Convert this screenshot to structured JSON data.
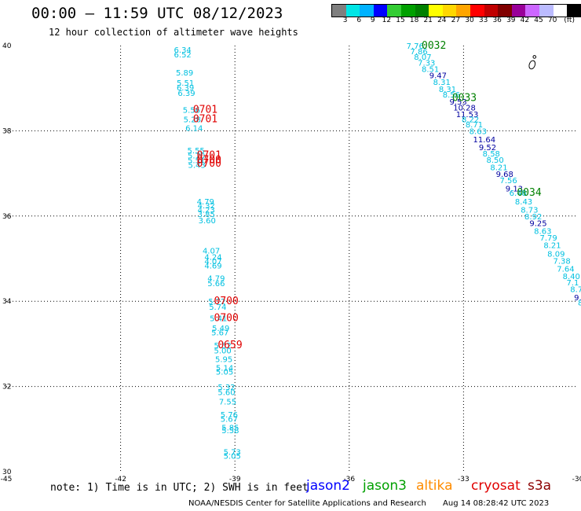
{
  "header": {
    "title": "00:00 – 11:59 UTC 08/12/2023",
    "subtitle": "12 hour collection of altimeter wave heights"
  },
  "colorbar": {
    "colors": [
      "#7f7f7f",
      "#00e5e5",
      "#00b2ff",
      "#0000ff",
      "#33cc33",
      "#00a000",
      "#008000",
      "#ffff00",
      "#ffd700",
      "#ffa500",
      "#ff0000",
      "#c00000",
      "#800000",
      "#990099",
      "#cc66ff",
      "#bbbbff",
      "#ffffff",
      "#000000"
    ],
    "labels": [
      "3",
      "6",
      "9",
      "12",
      "15",
      "18",
      "21",
      "24",
      "27",
      "30",
      "33",
      "36",
      "39",
      "42",
      "45",
      "70",
      "(ft)"
    ]
  },
  "map": {
    "lon_range": [
      -45,
      -30
    ],
    "lat_range": [
      30,
      40
    ],
    "lon_ticks": [
      "-45",
      "-42",
      "-39",
      "-36",
      "-33",
      "-30"
    ],
    "lat_ticks": [
      "30",
      "32",
      "34",
      "36",
      "38",
      "40"
    ],
    "grid": "dotted"
  },
  "track_colors": {
    "jason3": "#00c0e0",
    "jason3_dark": "#0000a0",
    "time_label": "#e00000",
    "time_label_green": "#008000"
  },
  "tracks": {
    "left_track": {
      "values": [
        {
          "text": "6.34",
          "lon": -40.6,
          "lat": 39.83
        },
        {
          "text": "6.52",
          "lon": -40.6,
          "lat": 39.72
        },
        {
          "text": "5.89",
          "lon": -40.55,
          "lat": 39.3
        },
        {
          "text": "5.51",
          "lon": -40.53,
          "lat": 39.06
        },
        {
          "text": "6.39",
          "lon": -40.53,
          "lat": 38.95
        },
        {
          "text": "6.39",
          "lon": -40.5,
          "lat": 38.82
        },
        {
          "text": "5.56",
          "lon": -40.37,
          "lat": 38.42
        },
        {
          "text": "5.28",
          "lon": -40.35,
          "lat": 38.2
        },
        {
          "text": "6.14",
          "lon": -40.3,
          "lat": 38.0
        },
        {
          "text": "5.55",
          "lon": -40.25,
          "lat": 37.47
        },
        {
          "text": "5.70",
          "lon": -40.24,
          "lat": 37.35
        },
        {
          "text": "5.51",
          "lon": -40.24,
          "lat": 37.24
        },
        {
          "text": "5.43",
          "lon": -40.23,
          "lat": 37.13
        },
        {
          "text": "4.79",
          "lon": -40.0,
          "lat": 36.27
        },
        {
          "text": "4.32",
          "lon": -39.98,
          "lat": 36.18
        },
        {
          "text": "4.23",
          "lon": -39.98,
          "lat": 36.08
        },
        {
          "text": "3.85",
          "lon": -39.98,
          "lat": 35.98
        },
        {
          "text": "3.60",
          "lon": -39.96,
          "lat": 35.83
        },
        {
          "text": "4.07",
          "lon": -39.85,
          "lat": 35.12
        },
        {
          "text": "4.24",
          "lon": -39.8,
          "lat": 34.97
        },
        {
          "text": "4.07",
          "lon": -39.8,
          "lat": 34.87
        },
        {
          "text": "4.69",
          "lon": -39.8,
          "lat": 34.77
        },
        {
          "text": "4.79",
          "lon": -39.72,
          "lat": 34.47
        },
        {
          "text": "5.66",
          "lon": -39.72,
          "lat": 34.35
        },
        {
          "text": "5.72",
          "lon": -39.7,
          "lat": 33.93
        },
        {
          "text": "5.74",
          "lon": -39.68,
          "lat": 33.8
        },
        {
          "text": "5.41",
          "lon": -39.66,
          "lat": 33.53
        },
        {
          "text": "5.49",
          "lon": -39.6,
          "lat": 33.3
        },
        {
          "text": "5.67",
          "lon": -39.62,
          "lat": 33.2
        },
        {
          "text": "5.52",
          "lon": -39.55,
          "lat": 32.9
        },
        {
          "text": "5.00",
          "lon": -39.55,
          "lat": 32.78
        },
        {
          "text": "5.95",
          "lon": -39.52,
          "lat": 32.57
        },
        {
          "text": "5.14",
          "lon": -39.5,
          "lat": 32.37
        },
        {
          "text": "5.05",
          "lon": -39.5,
          "lat": 32.28
        },
        {
          "text": "5.32",
          "lon": -39.45,
          "lat": 31.92
        },
        {
          "text": "5.60",
          "lon": -39.45,
          "lat": 31.8
        },
        {
          "text": "7.55",
          "lon": -39.42,
          "lat": 31.58
        },
        {
          "text": "5.76",
          "lon": -39.38,
          "lat": 31.27
        },
        {
          "text": "5.67",
          "lon": -39.38,
          "lat": 31.17
        },
        {
          "text": "5.85",
          "lon": -39.35,
          "lat": 30.97
        },
        {
          "text": "5.58",
          "lon": -39.35,
          "lat": 30.9
        },
        {
          "text": "5.73",
          "lon": -39.3,
          "lat": 30.4
        },
        {
          "text": "5.05",
          "lon": -39.3,
          "lat": 30.3
        }
      ],
      "time_labels": [
        {
          "text": "0701",
          "lon": -40.1,
          "lat": 38.42
        },
        {
          "text": "0701",
          "lon": -40.1,
          "lat": 38.2
        },
        {
          "text": "0701",
          "lon": -40.0,
          "lat": 37.35
        },
        {
          "text": "0700",
          "lon": -40.0,
          "lat": 37.24
        },
        {
          "text": "0700",
          "lon": -40.0,
          "lat": 37.16
        },
        {
          "text": "0700",
          "lon": -39.55,
          "lat": 33.93
        },
        {
          "text": "0700",
          "lon": -39.55,
          "lat": 33.53
        },
        {
          "text": "0659",
          "lon": -39.45,
          "lat": 32.9
        }
      ]
    },
    "right_track": {
      "values": [
        {
          "text": "7.76",
          "lon": -34.5,
          "lat": 39.93,
          "dark": false
        },
        {
          "text": "7.86",
          "lon": -34.4,
          "lat": 39.8,
          "dark": false
        },
        {
          "text": "8.07",
          "lon": -34.3,
          "lat": 39.67,
          "dark": false
        },
        {
          "text": "7.33",
          "lon": -34.2,
          "lat": 39.53,
          "dark": false
        },
        {
          "text": "8.51",
          "lon": -34.1,
          "lat": 39.38,
          "dark": false
        },
        {
          "text": "9.47",
          "lon": -33.9,
          "lat": 39.23,
          "dark": true
        },
        {
          "text": "8.31",
          "lon": -33.8,
          "lat": 39.08,
          "dark": false
        },
        {
          "text": "8.31",
          "lon": -33.65,
          "lat": 38.91,
          "dark": false
        },
        {
          "text": "8.56",
          "lon": -33.55,
          "lat": 38.78,
          "dark": false
        },
        {
          "text": "9.53",
          "lon": -33.37,
          "lat": 38.62,
          "dark": true
        },
        {
          "text": "10.28",
          "lon": -33.27,
          "lat": 38.48,
          "dark": true
        },
        {
          "text": "11.53",
          "lon": -33.2,
          "lat": 38.32,
          "dark": true
        },
        {
          "text": "8.22",
          "lon": -33.05,
          "lat": 38.2,
          "dark": false
        },
        {
          "text": "8.71",
          "lon": -32.95,
          "lat": 38.08,
          "dark": false
        },
        {
          "text": "8.63",
          "lon": -32.85,
          "lat": 37.92,
          "dark": false
        },
        {
          "text": "11.64",
          "lon": -32.75,
          "lat": 37.73,
          "dark": true
        },
        {
          "text": "9.52",
          "lon": -32.6,
          "lat": 37.55,
          "dark": true
        },
        {
          "text": "8.58",
          "lon": -32.5,
          "lat": 37.4,
          "dark": false
        },
        {
          "text": "8.50",
          "lon": -32.4,
          "lat": 37.25,
          "dark": false
        },
        {
          "text": "8.21",
          "lon": -32.3,
          "lat": 37.08,
          "dark": false
        },
        {
          "text": "9.68",
          "lon": -32.15,
          "lat": 36.92,
          "dark": true
        },
        {
          "text": "7.56",
          "lon": -32.05,
          "lat": 36.77,
          "dark": false
        },
        {
          "text": "9.13",
          "lon": -31.9,
          "lat": 36.58,
          "dark": true
        },
        {
          "text": "6.48",
          "lon": -31.8,
          "lat": 36.48,
          "dark": false
        },
        {
          "text": "8.43",
          "lon": -31.65,
          "lat": 36.27,
          "dark": false
        },
        {
          "text": "8.73",
          "lon": -31.5,
          "lat": 36.08,
          "dark": false
        },
        {
          "text": "8.92",
          "lon": -31.4,
          "lat": 35.92,
          "dark": false
        },
        {
          "text": "9.25",
          "lon": -31.27,
          "lat": 35.77,
          "dark": true
        },
        {
          "text": "8.63",
          "lon": -31.15,
          "lat": 35.58,
          "dark": false
        },
        {
          "text": "7.79",
          "lon": -31.0,
          "lat": 35.42,
          "dark": false
        },
        {
          "text": "8.21",
          "lon": -30.9,
          "lat": 35.25,
          "dark": false
        },
        {
          "text": "8.09",
          "lon": -30.8,
          "lat": 35.05,
          "dark": false
        },
        {
          "text": "7.38",
          "lon": -30.65,
          "lat": 34.88,
          "dark": false
        },
        {
          "text": "7.64",
          "lon": -30.55,
          "lat": 34.7,
          "dark": false
        },
        {
          "text": "8.40",
          "lon": -30.4,
          "lat": 34.52,
          "dark": false
        },
        {
          "text": "7.1",
          "lon": -30.3,
          "lat": 34.37,
          "dark": false
        },
        {
          "text": "8.7",
          "lon": -30.2,
          "lat": 34.22,
          "dark": false
        },
        {
          "text": "9.",
          "lon": -30.1,
          "lat": 34.02,
          "dark": true
        },
        {
          "text": "8.",
          "lon": -30.0,
          "lat": 33.9,
          "dark": false
        }
      ],
      "time_labels": [
        {
          "text": "0032",
          "lon": -34.1,
          "lat": 39.93
        },
        {
          "text": "0033",
          "lon": -33.3,
          "lat": 38.7
        },
        {
          "text": "0034",
          "lon": -31.6,
          "lat": 36.48
        }
      ]
    }
  },
  "island_marker": {
    "lon": -31.2,
    "lat": 39.55
  },
  "note": "note: 1) Time is in UTC; 2) SWH is in feet",
  "legend": [
    {
      "name": "jason2",
      "color": "#0000ff"
    },
    {
      "name": "jason3",
      "color": "#00a000"
    },
    {
      "name": "altika",
      "color": "#ff8c00"
    },
    {
      "name": "cryosat",
      "color": "#e00000"
    },
    {
      "name": "s3a",
      "color": "#8b0000"
    }
  ],
  "footer": {
    "credit": "NOAA/NESDIS Center for Satellite Applications and Research",
    "timestamp": "Aug 14 08:28:42 UTC 2023"
  }
}
